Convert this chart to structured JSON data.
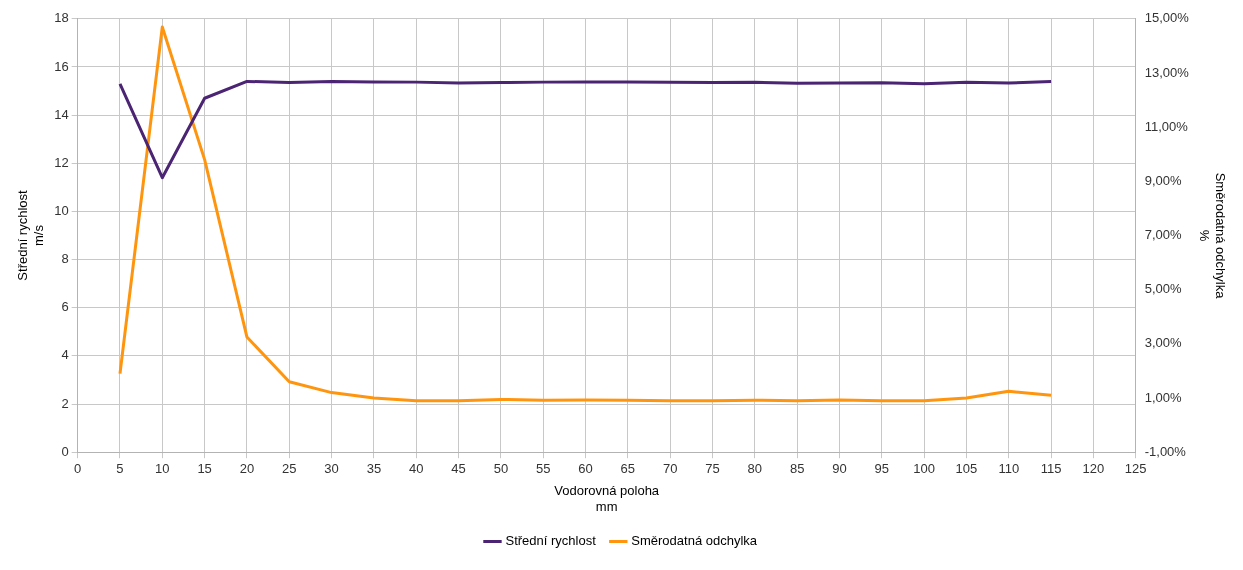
{
  "chart_data": {
    "type": "line",
    "xlabel": "Vodorovná poloha\nmm",
    "ylabel": "Střední rychlost\nm/s",
    "y2label": "Směrodatná odchylka\n%",
    "x": [
      5,
      10,
      15,
      20,
      25,
      30,
      35,
      40,
      45,
      50,
      55,
      60,
      65,
      70,
      75,
      80,
      85,
      90,
      95,
      100,
      105,
      110,
      115
    ],
    "series": [
      {
        "name": "Střední rychlost",
        "color": "#4b2473",
        "values": [
          15.3,
          11.4,
          14.7,
          15.4,
          15.35,
          15.4,
          15.38,
          15.37,
          15.33,
          15.35,
          15.37,
          15.38,
          15.38,
          15.36,
          15.35,
          15.36,
          15.32,
          15.33,
          15.34,
          15.3,
          15.36,
          15.33,
          15.4
        ]
      },
      {
        "name": "Směrodatná odchylka",
        "color": "#ff950e",
        "axis": "y2",
        "values": [
          1.9,
          14.7,
          9.8,
          3.25,
          1.6,
          1.2,
          1.0,
          0.9,
          0.9,
          0.95,
          0.92,
          0.93,
          0.92,
          0.9,
          0.9,
          0.92,
          0.9,
          0.93,
          0.9,
          0.9,
          1.0,
          1.25,
          1.1
        ]
      }
    ],
    "xlim": [
      0,
      125
    ],
    "xticks": [
      0,
      5,
      10,
      15,
      20,
      25,
      30,
      35,
      40,
      45,
      50,
      55,
      60,
      65,
      70,
      75,
      80,
      85,
      90,
      95,
      100,
      105,
      110,
      115,
      120,
      125
    ],
    "ylim": [
      0,
      18
    ],
    "yticks": [
      0,
      2,
      4,
      6,
      8,
      10,
      12,
      14,
      16,
      18
    ],
    "y2lim": [
      -1,
      15
    ],
    "y2ticks": [
      {
        "value": -1,
        "label": "-1,00%"
      },
      {
        "value": 1,
        "label": "1,00%"
      },
      {
        "value": 3,
        "label": "3,00%"
      },
      {
        "value": 5,
        "label": "5,00%"
      },
      {
        "value": 7,
        "label": "7,00%"
      },
      {
        "value": 9,
        "label": "9,00%"
      },
      {
        "value": 11,
        "label": "11,00%"
      },
      {
        "value": 13,
        "label": "13,00%"
      },
      {
        "value": 15,
        "label": "15,00%"
      }
    ],
    "grid": true,
    "legend": "bottom",
    "marker": "none",
    "line_style": "solid"
  }
}
